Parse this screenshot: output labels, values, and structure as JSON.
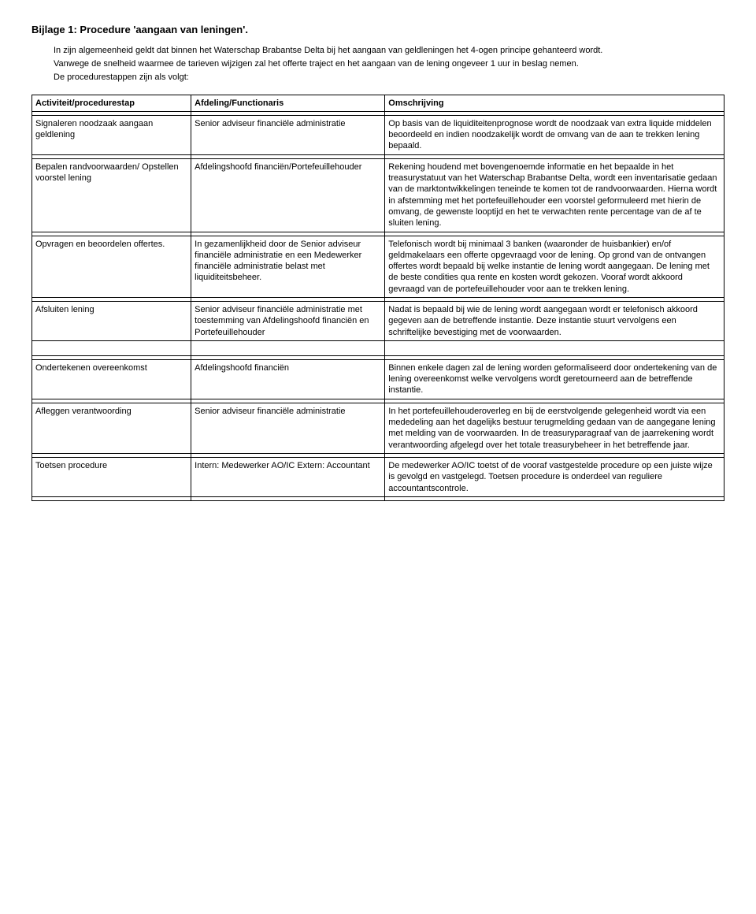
{
  "title": "Bijlage 1: Procedure 'aangaan van leningen'.",
  "intro": {
    "p1": "In zijn algemeenheid geldt dat binnen het Waterschap Brabantse Delta bij het aangaan van geldleningen het 4-ogen principe gehanteerd wordt.",
    "p2": "Vanwege de snelheid waarmee de tarieven wijzigen zal het offerte traject en het aangaan van de lening ongeveer 1 uur in beslag nemen.",
    "p3": "De procedurestappen zijn als volgt:"
  },
  "headers": {
    "c1": "Activiteit/procedurestap",
    "c2": "Afdeling/Functionaris",
    "c3": "Omschrijving"
  },
  "rows": [
    {
      "c1": "Signaleren noodzaak aangaan geldlening",
      "c2": "Senior adviseur financiële administratie",
      "c3": "Op basis van de liquiditeitenprognose wordt de noodzaak van extra liquide middelen beoordeeld en indien noodzakelijk wordt de omvang van de aan te trekken lening bepaald."
    },
    {
      "c1": "Bepalen randvoorwaarden/ Opstellen voorstel lening",
      "c2": "Afdelingshoofd financiën/Portefeuillehouder",
      "c3": "Rekening houdend met bovengenoemde informatie en het bepaalde in het treasurystatuut van het Waterschap Brabantse Delta, wordt een inventarisatie gedaan van de marktontwikkelingen teneinde te komen tot de randvoorwaarden. Hierna wordt in afstemming met het portefeuillehouder een voorstel geformuleerd met hierin de omvang, de gewenste looptijd en het te verwachten rente percentage van de af te sluiten lening."
    },
    {
      "c1": "Opvragen en beoordelen offertes.",
      "c2": "In gezamenlijkheid door de Senior adviseur financiële administratie en een Medewerker financiële administratie belast met liquiditeitsbeheer.",
      "c3": "Telefonisch wordt bij minimaal 3 banken (waaronder de huisbankier) en/of geldmakelaars een offerte opgevraagd voor de lening. Op grond van de ontvangen offertes wordt bepaald bij welke instantie de lening wordt aangegaan. De lening met de beste condities qua rente en kosten wordt gekozen. Vooraf wordt akkoord gevraagd van de portefeuillehouder voor aan te trekken lening."
    },
    {
      "c1": "Afsluiten lening",
      "c2": "Senior adviseur financiële administratie met toestemming van Afdelingshoofd financiën en Portefeuillehouder",
      "c3": "Nadat is bepaald bij wie de lening wordt aangegaan wordt er telefonisch akkoord gegeven aan de betreffende instantie. Deze instantie stuurt vervolgens een schriftelijke bevestiging met de voorwaarden."
    },
    {
      "c1": "Ondertekenen overeenkomst",
      "c2": "Afdelingshoofd financiën",
      "c3": "Binnen enkele dagen zal de lening worden geformaliseerd door ondertekening van de lening overeenkomst welke vervolgens wordt geretourneerd aan de betreffende instantie."
    },
    {
      "c1": "Afleggen verantwoording",
      "c2": "Senior adviseur financiële administratie",
      "c3": "In het portefeuillehouderoverleg en bij de eerstvolgende gelegenheid wordt via een mededeling aan het dagelijks bestuur terugmelding gedaan van de aangegane lening met melding van de voorwaarden. In de treasuryparagraaf van de jaarrekening wordt verantwoording afgelegd over het totale treasurybeheer in het betreffende jaar."
    },
    {
      "c1": "Toetsen procedure",
      "c2": "Intern: Medewerker AO/IC\nExtern: Accountant",
      "c3": "De medewerker AO/IC toetst of de vooraf vastgestelde procedure op een juiste wijze is gevolgd en vastgelegd. Toetsen procedure is onderdeel van reguliere accountantscontrole."
    }
  ]
}
